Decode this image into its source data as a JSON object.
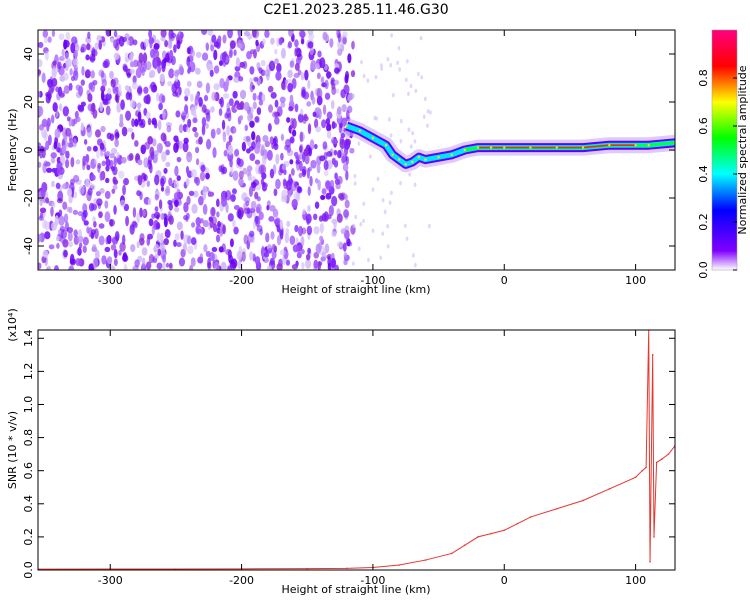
{
  "title": "C2E1.2023.285.11.46.G30",
  "colors": {
    "spec_purple": "#7a1aff",
    "spec_lavender": "#c9a7f5",
    "snr_line": "#e8352f",
    "axis": "#000000"
  },
  "chart_data": [
    {
      "type": "heatmap",
      "title": "C2E1.2023.285.11.46.G30",
      "xlabel": "Height of straight line (km)",
      "ylabel": "Frequency (Hz)",
      "xlim": [
        -355,
        130
      ],
      "ylim": [
        -50,
        50
      ],
      "xticks": [
        -300,
        -200,
        -100,
        0,
        100
      ],
      "yticks": [
        -40,
        -20,
        0,
        20,
        40
      ],
      "colorbar": {
        "label": "Normalized spectral amplitude",
        "range": [
          0.0,
          1.0
        ],
        "ticks": [
          "0.0",
          "0.2",
          "0.4",
          "0.6",
          "0.8"
        ],
        "colormap": [
          "#ffffff",
          "#8000ff",
          "#0000ff",
          "#00ffff",
          "#00ff00",
          "#ffff00",
          "#ff0000",
          "#ff0080"
        ]
      },
      "description_of_content": "noise region below -120 km, frequency track converging to near 0 Hz above -60 km",
      "track": [
        {
          "x": -120,
          "y": 10
        },
        {
          "x": -110,
          "y": 8
        },
        {
          "x": -100,
          "y": 5
        },
        {
          "x": -90,
          "y": 2
        },
        {
          "x": -85,
          "y": -2
        },
        {
          "x": -80,
          "y": -4
        },
        {
          "x": -75,
          "y": -6
        },
        {
          "x": -70,
          "y": -5
        },
        {
          "x": -65,
          "y": -3
        },
        {
          "x": -60,
          "y": -4
        },
        {
          "x": -50,
          "y": -3
        },
        {
          "x": -40,
          "y": -2
        },
        {
          "x": -30,
          "y": 0
        },
        {
          "x": -20,
          "y": 1
        },
        {
          "x": -10,
          "y": 1
        },
        {
          "x": 0,
          "y": 1
        },
        {
          "x": 20,
          "y": 1
        },
        {
          "x": 40,
          "y": 1
        },
        {
          "x": 60,
          "y": 1
        },
        {
          "x": 80,
          "y": 2
        },
        {
          "x": 100,
          "y": 2
        },
        {
          "x": 110,
          "y": 2
        },
        {
          "x": 130,
          "y": 3
        }
      ]
    },
    {
      "type": "line",
      "xlabel": "Height of straight line (km)",
      "ylabel": "SNR (10 * v/v)",
      "y_multiplier": "(x10⁴)",
      "xlim": [
        -355,
        130
      ],
      "ylim": [
        0.0,
        1.45
      ],
      "xticks": [
        -300,
        -200,
        -100,
        0,
        100
      ],
      "yticks": [
        "0.0",
        "0.2",
        "0.4",
        "0.6",
        "0.8",
        "1.0",
        "1.2",
        "1.4"
      ],
      "series": [
        {
          "points": [
            {
              "x": -355,
              "y": 0.005
            },
            {
              "x": -300,
              "y": 0.006
            },
            {
              "x": -250,
              "y": 0.006
            },
            {
              "x": -200,
              "y": 0.007
            },
            {
              "x": -150,
              "y": 0.008
            },
            {
              "x": -120,
              "y": 0.01
            },
            {
              "x": -100,
              "y": 0.015
            },
            {
              "x": -80,
              "y": 0.03
            },
            {
              "x": -60,
              "y": 0.06
            },
            {
              "x": -40,
              "y": 0.1
            },
            {
              "x": -30,
              "y": 0.15
            },
            {
              "x": -20,
              "y": 0.2
            },
            {
              "x": -10,
              "y": 0.22
            },
            {
              "x": 0,
              "y": 0.24
            },
            {
              "x": 10,
              "y": 0.28
            },
            {
              "x": 20,
              "y": 0.32
            },
            {
              "x": 40,
              "y": 0.37
            },
            {
              "x": 60,
              "y": 0.42
            },
            {
              "x": 80,
              "y": 0.49
            },
            {
              "x": 100,
              "y": 0.56
            },
            {
              "x": 105,
              "y": 0.6
            },
            {
              "x": 108,
              "y": 0.62
            },
            {
              "x": 110,
              "y": 1.45
            },
            {
              "x": 111,
              "y": 0.05
            },
            {
              "x": 113,
              "y": 1.3
            },
            {
              "x": 114,
              "y": 0.2
            },
            {
              "x": 116,
              "y": 0.65
            },
            {
              "x": 120,
              "y": 0.67
            },
            {
              "x": 125,
              "y": 0.7
            },
            {
              "x": 130,
              "y": 0.75
            }
          ]
        }
      ]
    }
  ]
}
